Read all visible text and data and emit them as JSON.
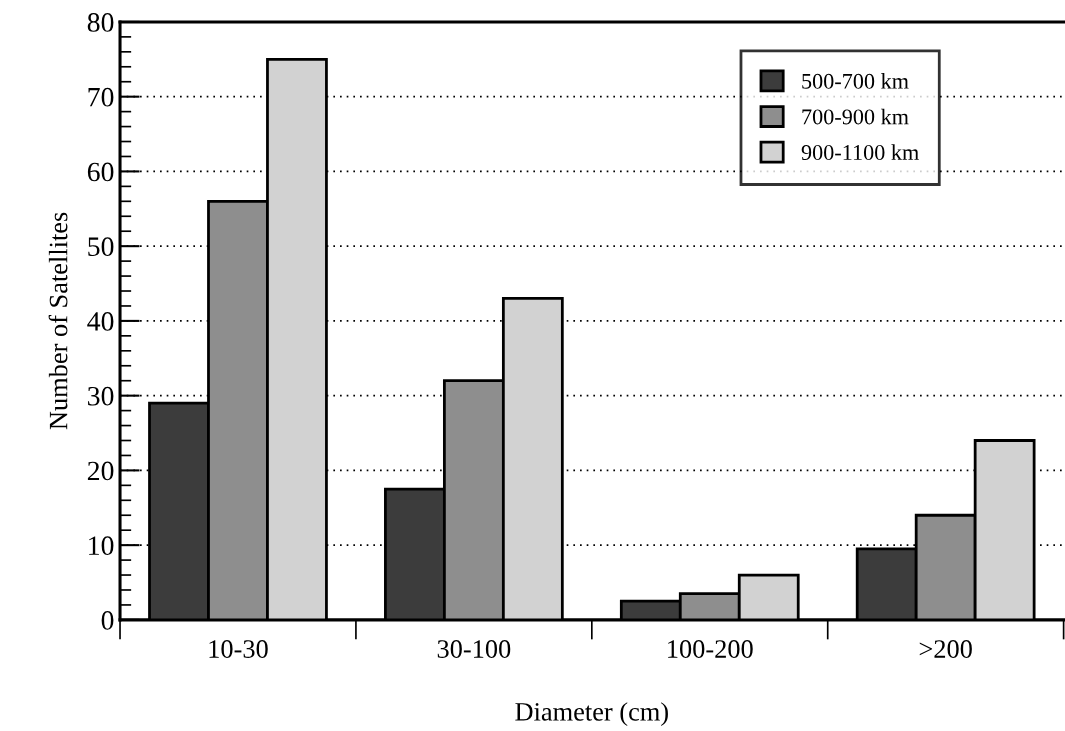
{
  "chart_data": {
    "type": "bar",
    "xlabel": "Diameter (cm)",
    "ylabel": "Number of Satellites",
    "categories": [
      "10-30",
      "30-100",
      "100-200",
      ">200"
    ],
    "series": [
      {
        "name": "500-700 km",
        "color": "#3c3c3c",
        "values": [
          29,
          17.5,
          2.5,
          9.5
        ]
      },
      {
        "name": "700-900 km",
        "color": "#8e8e8e",
        "values": [
          56,
          32,
          3.5,
          14
        ]
      },
      {
        "name": "900-1100 km",
        "color": "#d2d2d2",
        "values": [
          75,
          43,
          6,
          24
        ]
      }
    ],
    "ylim": [
      0,
      80
    ],
    "yticks": [
      0,
      10,
      20,
      30,
      40,
      50,
      60,
      70,
      80
    ],
    "grid": "y",
    "legend": "top right"
  }
}
